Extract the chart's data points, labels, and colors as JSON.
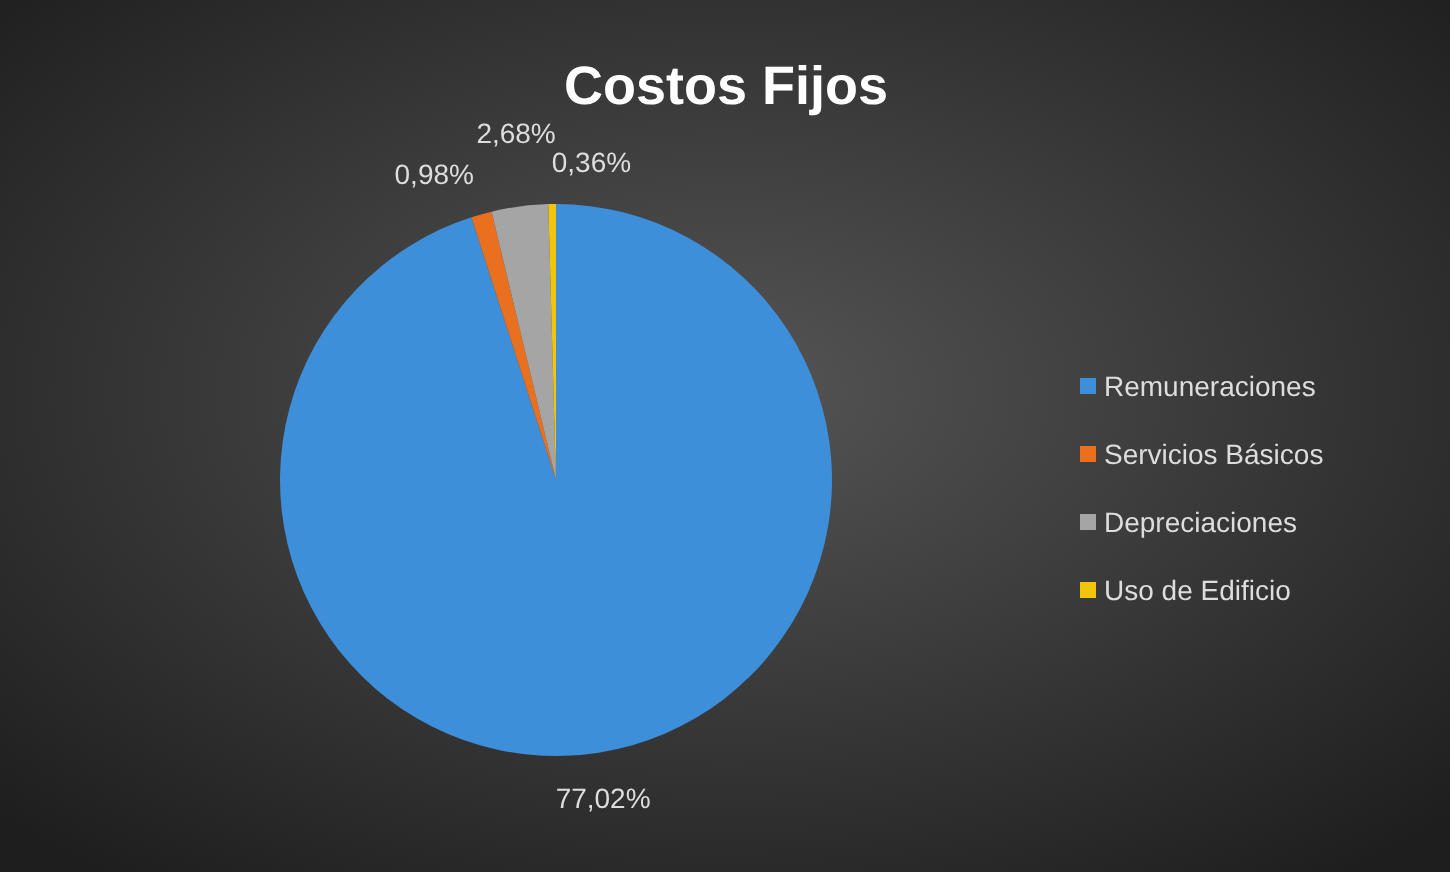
{
  "chart_data": {
    "type": "pie",
    "title": "Costos Fijos",
    "categories": [
      "Remuneraciones",
      "Servicios Básicos",
      "Depreciaciones",
      "Uso de Edificio"
    ],
    "values": [
      77.02,
      0.98,
      2.68,
      0.36
    ],
    "colors": [
      "#3d8fd9",
      "#e8701f",
      "#a5a5a5",
      "#f2c40c"
    ],
    "value_labels": [
      "77,02%",
      "0,98%",
      "2,68%",
      "0,36%"
    ],
    "legend": "right"
  }
}
